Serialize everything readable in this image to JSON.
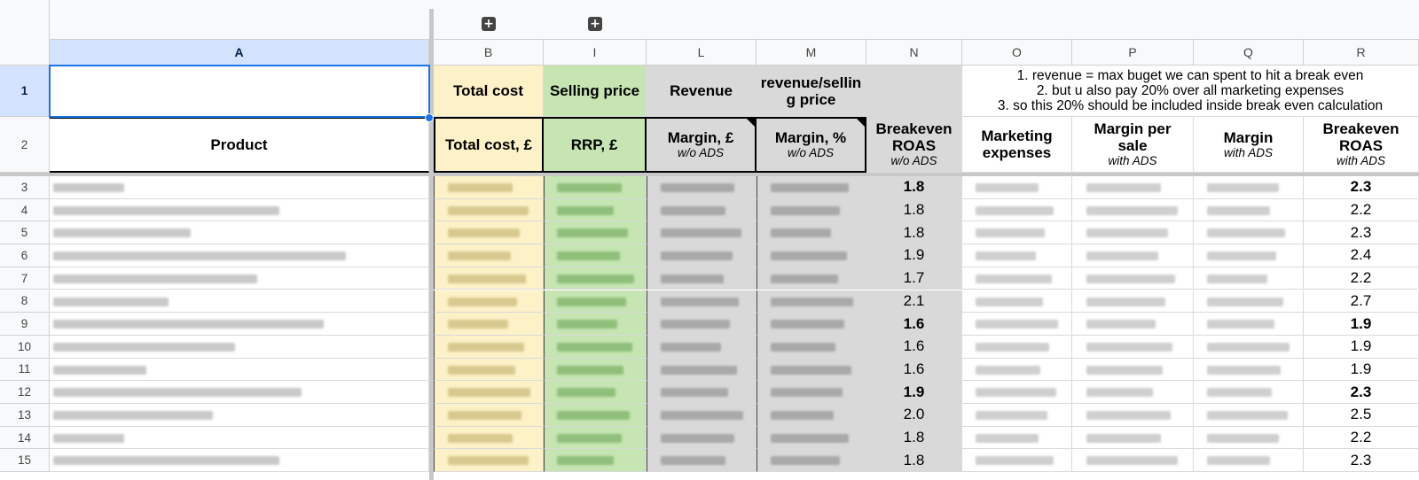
{
  "columns": {
    "A": "A",
    "B": "B",
    "I": "I",
    "L": "L",
    "M": "M",
    "N": "N",
    "O": "O",
    "P": "P",
    "Q": "Q",
    "R": "R"
  },
  "row1": {
    "total_cost": "Total cost",
    "selling_price": "Selling price",
    "revenue": "Revenue",
    "revenue_selling": "revenue/selling price",
    "notes": [
      "1. revenue = max buget we can spent to hit a break even",
      "2. but u also pay 20% over all marketing expenses",
      "3. so this 20% should be included inside break even calculation"
    ]
  },
  "row2": {
    "product": "Product",
    "total_cost_gbp": "Total cost, £",
    "rrp_gbp": "RRP, £",
    "margin_gbp": "Margin, £",
    "margin_gbp_sub": "w/o ADS",
    "margin_pct": "Margin, %",
    "margin_pct_sub": "w/o ADS",
    "breakeven_roas": "Breakeven ROAS",
    "breakeven_roas_sub": "w/o ADS",
    "marketing_expenses": "Marketing expenses",
    "margin_per_sale": "Margin per sale",
    "margin_per_sale_sub": "with ADS",
    "margin": "Margin",
    "margin_sub": "with ADS",
    "breakeven_roas_ads": "Breakeven ROAS",
    "breakeven_roas_ads_sub": "with ADS"
  },
  "rows": [
    {
      "num": "3",
      "roas": "1.8",
      "roas_ads": "2.3",
      "bold": true
    },
    {
      "num": "4",
      "roas": "1.8",
      "roas_ads": "2.2",
      "bold": false
    },
    {
      "num": "5",
      "roas": "1.8",
      "roas_ads": "2.3",
      "bold": false
    },
    {
      "num": "6",
      "roas": "1.9",
      "roas_ads": "2.4",
      "bold": false
    },
    {
      "num": "7",
      "roas": "1.7",
      "roas_ads": "2.2",
      "bold": false
    },
    {
      "num": "8",
      "roas": "2.1",
      "roas_ads": "2.7",
      "bold": false
    },
    {
      "num": "9",
      "roas": "1.6",
      "roas_ads": "1.9",
      "bold": true
    },
    {
      "num": "10",
      "roas": "1.6",
      "roas_ads": "1.9",
      "bold": false
    },
    {
      "num": "11",
      "roas": "1.6",
      "roas_ads": "1.9",
      "bold": false
    },
    {
      "num": "12",
      "roas": "1.9",
      "roas_ads": "2.3",
      "bold": true
    },
    {
      "num": "13",
      "roas": "2.0",
      "roas_ads": "2.5",
      "bold": false
    },
    {
      "num": "14",
      "roas": "1.8",
      "roas_ads": "2.2",
      "bold": false
    },
    {
      "num": "15",
      "roas": "1.8",
      "roas_ads": "2.3",
      "bold": false
    }
  ],
  "colors": {
    "yellow": "#fdf1c8",
    "green": "#c6e5b3",
    "gray": "#d9d9d9",
    "selection": "#1a73e8",
    "header_selected": "#d3e3fd"
  },
  "icons": {
    "group_toggle": "plus-square-icon"
  }
}
